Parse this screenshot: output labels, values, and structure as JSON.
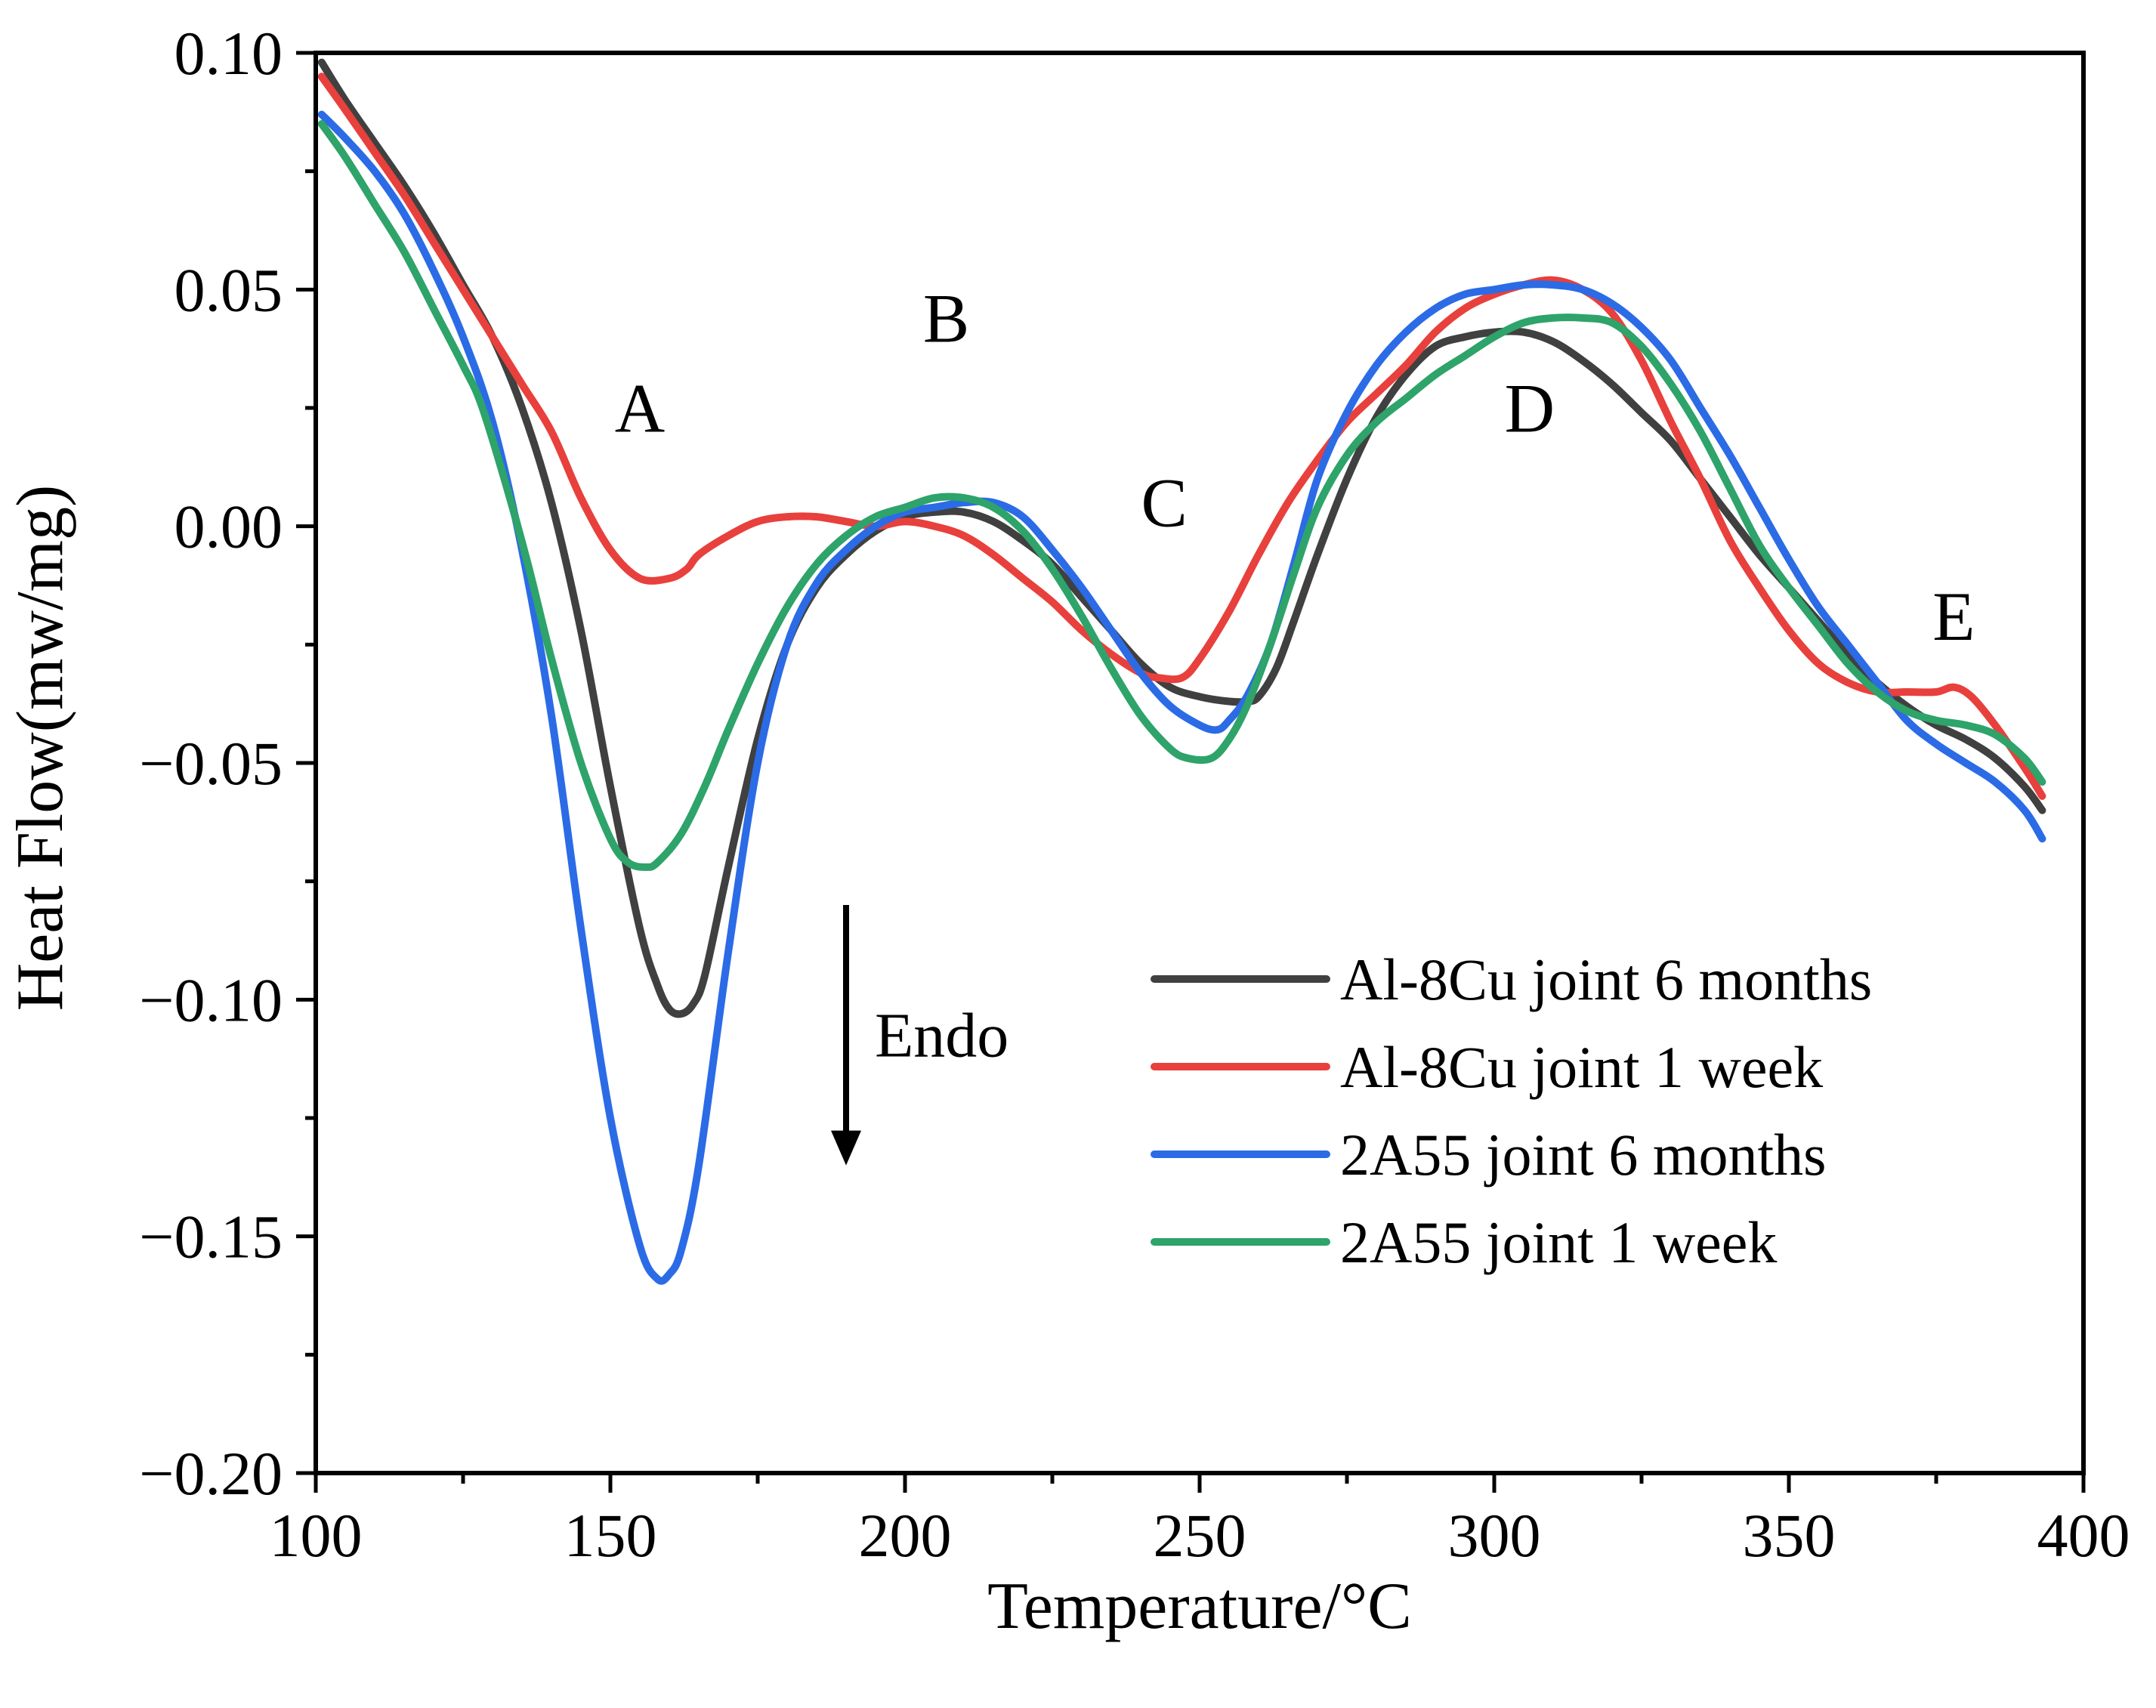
{
  "chart_data": {
    "type": "line",
    "xlabel": "Temperature/°C",
    "ylabel": "Heat Flow(mw/mg)",
    "xlim": [
      100,
      400
    ],
    "ylim": [
      -0.2,
      0.1
    ],
    "x_ticks": [
      100,
      150,
      200,
      250,
      300,
      350,
      400
    ],
    "x_tick_labels": [
      "100",
      "150",
      "200",
      "250",
      "300",
      "350",
      "400"
    ],
    "y_ticks": [
      0.1,
      0.05,
      0.0,
      -0.05,
      -0.1,
      -0.15,
      -0.2
    ],
    "y_tick_labels": [
      "0.10",
      "0.05",
      "0.00",
      "−0.05",
      "−0.10",
      "−0.15",
      "−0.20"
    ],
    "annotations": [
      {
        "text": "A",
        "x": 155,
        "y": 0.02
      },
      {
        "text": "B",
        "x": 207,
        "y": 0.039
      },
      {
        "text": "C",
        "x": 244,
        "y": 0.0
      },
      {
        "text": "D",
        "x": 306,
        "y": 0.02
      },
      {
        "text": "E",
        "x": 378,
        "y": -0.024
      }
    ],
    "endo_arrow": {
      "text": "Endo",
      "x": 190,
      "y_start": -0.08,
      "y_end": -0.135
    },
    "legend_position": "bottom-right",
    "series": [
      {
        "name": "Al-8Cu joint 6 months",
        "color": "#404040",
        "points": [
          [
            101,
            0.098
          ],
          [
            105,
            0.09
          ],
          [
            110,
            0.081
          ],
          [
            115,
            0.072
          ],
          [
            120,
            0.062
          ],
          [
            125,
            0.051
          ],
          [
            130,
            0.04
          ],
          [
            135,
            0.025
          ],
          [
            140,
            0.005
          ],
          [
            145,
            -0.022
          ],
          [
            150,
            -0.055
          ],
          [
            155,
            -0.085
          ],
          [
            158,
            -0.097
          ],
          [
            160,
            -0.102
          ],
          [
            162,
            -0.103
          ],
          [
            164,
            -0.101
          ],
          [
            166,
            -0.095
          ],
          [
            170,
            -0.072
          ],
          [
            175,
            -0.045
          ],
          [
            180,
            -0.025
          ],
          [
            185,
            -0.013
          ],
          [
            190,
            -0.006
          ],
          [
            195,
            -0.001
          ],
          [
            200,
            0.002
          ],
          [
            205,
            0.003
          ],
          [
            210,
            0.003
          ],
          [
            215,
            0.001
          ],
          [
            220,
            -0.003
          ],
          [
            225,
            -0.008
          ],
          [
            230,
            -0.015
          ],
          [
            235,
            -0.022
          ],
          [
            240,
            -0.029
          ],
          [
            245,
            -0.034
          ],
          [
            250,
            -0.036
          ],
          [
            255,
            -0.037
          ],
          [
            258,
            -0.037
          ],
          [
            260,
            -0.036
          ],
          [
            263,
            -0.03
          ],
          [
            266,
            -0.02
          ],
          [
            270,
            -0.006
          ],
          [
            275,
            0.01
          ],
          [
            280,
            0.023
          ],
          [
            285,
            0.032
          ],
          [
            290,
            0.038
          ],
          [
            295,
            0.04
          ],
          [
            300,
            0.041
          ],
          [
            305,
            0.041
          ],
          [
            310,
            0.039
          ],
          [
            315,
            0.035
          ],
          [
            320,
            0.03
          ],
          [
            325,
            0.024
          ],
          [
            330,
            0.018
          ],
          [
            335,
            0.01
          ],
          [
            340,
            0.002
          ],
          [
            345,
            -0.006
          ],
          [
            350,
            -0.013
          ],
          [
            355,
            -0.02
          ],
          [
            360,
            -0.027
          ],
          [
            365,
            -0.033
          ],
          [
            370,
            -0.038
          ],
          [
            375,
            -0.042
          ],
          [
            380,
            -0.045
          ],
          [
            385,
            -0.049
          ],
          [
            390,
            -0.055
          ],
          [
            393,
            -0.06
          ]
        ]
      },
      {
        "name": "Al-8Cu joint 1 week",
        "color": "#e8403c",
        "points": [
          [
            101,
            0.095
          ],
          [
            105,
            0.088
          ],
          [
            110,
            0.079
          ],
          [
            115,
            0.07
          ],
          [
            120,
            0.06
          ],
          [
            125,
            0.05
          ],
          [
            130,
            0.04
          ],
          [
            135,
            0.03
          ],
          [
            140,
            0.02
          ],
          [
            145,
            0.006
          ],
          [
            150,
            -0.005
          ],
          [
            155,
            -0.011
          ],
          [
            160,
            -0.011
          ],
          [
            163,
            -0.009
          ],
          [
            165,
            -0.006
          ],
          [
            170,
            -0.002
          ],
          [
            175,
            0.001
          ],
          [
            180,
            0.002
          ],
          [
            185,
            0.002
          ],
          [
            190,
            0.001
          ],
          [
            195,
            0.0
          ],
          [
            200,
            0.001
          ],
          [
            205,
            0.0
          ],
          [
            210,
            -0.002
          ],
          [
            215,
            -0.006
          ],
          [
            220,
            -0.011
          ],
          [
            225,
            -0.016
          ],
          [
            230,
            -0.022
          ],
          [
            235,
            -0.027
          ],
          [
            240,
            -0.031
          ],
          [
            243,
            -0.032
          ],
          [
            247,
            -0.032
          ],
          [
            250,
            -0.028
          ],
          [
            255,
            -0.018
          ],
          [
            260,
            -0.006
          ],
          [
            265,
            0.005
          ],
          [
            270,
            0.014
          ],
          [
            275,
            0.022
          ],
          [
            280,
            0.028
          ],
          [
            285,
            0.034
          ],
          [
            290,
            0.041
          ],
          [
            295,
            0.046
          ],
          [
            300,
            0.049
          ],
          [
            305,
            0.051
          ],
          [
            310,
            0.052
          ],
          [
            315,
            0.05
          ],
          [
            320,
            0.045
          ],
          [
            325,
            0.035
          ],
          [
            330,
            0.022
          ],
          [
            335,
            0.01
          ],
          [
            340,
            -0.003
          ],
          [
            345,
            -0.013
          ],
          [
            350,
            -0.022
          ],
          [
            355,
            -0.029
          ],
          [
            360,
            -0.033
          ],
          [
            365,
            -0.035
          ],
          [
            370,
            -0.035
          ],
          [
            375,
            -0.035
          ],
          [
            378,
            -0.034
          ],
          [
            381,
            -0.036
          ],
          [
            385,
            -0.042
          ],
          [
            390,
            -0.051
          ],
          [
            393,
            -0.057
          ]
        ]
      },
      {
        "name": "2A55 joint 6 months",
        "color": "#2b6be6",
        "points": [
          [
            101,
            0.087
          ],
          [
            105,
            0.082
          ],
          [
            110,
            0.075
          ],
          [
            115,
            0.066
          ],
          [
            120,
            0.054
          ],
          [
            125,
            0.04
          ],
          [
            130,
            0.022
          ],
          [
            135,
            -0.005
          ],
          [
            140,
            -0.04
          ],
          [
            145,
            -0.085
          ],
          [
            150,
            -0.125
          ],
          [
            155,
            -0.152
          ],
          [
            158,
            -0.159
          ],
          [
            160,
            -0.158
          ],
          [
            162,
            -0.153
          ],
          [
            165,
            -0.135
          ],
          [
            170,
            -0.09
          ],
          [
            175,
            -0.05
          ],
          [
            180,
            -0.025
          ],
          [
            185,
            -0.012
          ],
          [
            190,
            -0.005
          ],
          [
            195,
            0.0
          ],
          [
            200,
            0.003
          ],
          [
            205,
            0.004
          ],
          [
            210,
            0.005
          ],
          [
            215,
            0.005
          ],
          [
            220,
            0.002
          ],
          [
            225,
            -0.005
          ],
          [
            230,
            -0.013
          ],
          [
            235,
            -0.022
          ],
          [
            240,
            -0.031
          ],
          [
            245,
            -0.038
          ],
          [
            250,
            -0.042
          ],
          [
            253,
            -0.043
          ],
          [
            255,
            -0.041
          ],
          [
            258,
            -0.036
          ],
          [
            262,
            -0.025
          ],
          [
            266,
            -0.008
          ],
          [
            270,
            0.01
          ],
          [
            275,
            0.024
          ],
          [
            280,
            0.034
          ],
          [
            285,
            0.041
          ],
          [
            290,
            0.046
          ],
          [
            295,
            0.049
          ],
          [
            300,
            0.05
          ],
          [
            305,
            0.051
          ],
          [
            310,
            0.051
          ],
          [
            315,
            0.05
          ],
          [
            320,
            0.047
          ],
          [
            325,
            0.042
          ],
          [
            330,
            0.035
          ],
          [
            335,
            0.025
          ],
          [
            340,
            0.015
          ],
          [
            345,
            0.004
          ],
          [
            350,
            -0.007
          ],
          [
            355,
            -0.017
          ],
          [
            360,
            -0.025
          ],
          [
            365,
            -0.033
          ],
          [
            370,
            -0.041
          ],
          [
            375,
            -0.046
          ],
          [
            380,
            -0.05
          ],
          [
            385,
            -0.054
          ],
          [
            390,
            -0.06
          ],
          [
            393,
            -0.066
          ]
        ]
      },
      {
        "name": "2A55 joint 1 week",
        "color": "#2ea36a",
        "points": [
          [
            101,
            0.085
          ],
          [
            105,
            0.078
          ],
          [
            110,
            0.068
          ],
          [
            115,
            0.058
          ],
          [
            120,
            0.046
          ],
          [
            125,
            0.034
          ],
          [
            128,
            0.026
          ],
          [
            132,
            0.01
          ],
          [
            136,
            -0.008
          ],
          [
            140,
            -0.028
          ],
          [
            145,
            -0.05
          ],
          [
            150,
            -0.066
          ],
          [
            153,
            -0.071
          ],
          [
            156,
            -0.072
          ],
          [
            158,
            -0.071
          ],
          [
            162,
            -0.065
          ],
          [
            166,
            -0.055
          ],
          [
            170,
            -0.043
          ],
          [
            175,
            -0.029
          ],
          [
            180,
            -0.017
          ],
          [
            185,
            -0.008
          ],
          [
            190,
            -0.002
          ],
          [
            195,
            0.002
          ],
          [
            200,
            0.004
          ],
          [
            205,
            0.006
          ],
          [
            210,
            0.006
          ],
          [
            215,
            0.004
          ],
          [
            220,
            -0.001
          ],
          [
            225,
            -0.009
          ],
          [
            230,
            -0.019
          ],
          [
            235,
            -0.03
          ],
          [
            240,
            -0.04
          ],
          [
            245,
            -0.047
          ],
          [
            248,
            -0.049
          ],
          [
            252,
            -0.049
          ],
          [
            255,
            -0.045
          ],
          [
            258,
            -0.038
          ],
          [
            262,
            -0.025
          ],
          [
            266,
            -0.01
          ],
          [
            270,
            0.004
          ],
          [
            275,
            0.015
          ],
          [
            280,
            0.022
          ],
          [
            285,
            0.027
          ],
          [
            290,
            0.032
          ],
          [
            295,
            0.036
          ],
          [
            300,
            0.04
          ],
          [
            305,
            0.043
          ],
          [
            310,
            0.044
          ],
          [
            315,
            0.044
          ],
          [
            320,
            0.043
          ],
          [
            325,
            0.038
          ],
          [
            330,
            0.03
          ],
          [
            335,
            0.02
          ],
          [
            340,
            0.008
          ],
          [
            345,
            -0.004
          ],
          [
            350,
            -0.013
          ],
          [
            355,
            -0.021
          ],
          [
            360,
            -0.029
          ],
          [
            365,
            -0.035
          ],
          [
            370,
            -0.039
          ],
          [
            375,
            -0.041
          ],
          [
            380,
            -0.042
          ],
          [
            385,
            -0.044
          ],
          [
            390,
            -0.049
          ],
          [
            393,
            -0.054
          ]
        ]
      }
    ]
  }
}
